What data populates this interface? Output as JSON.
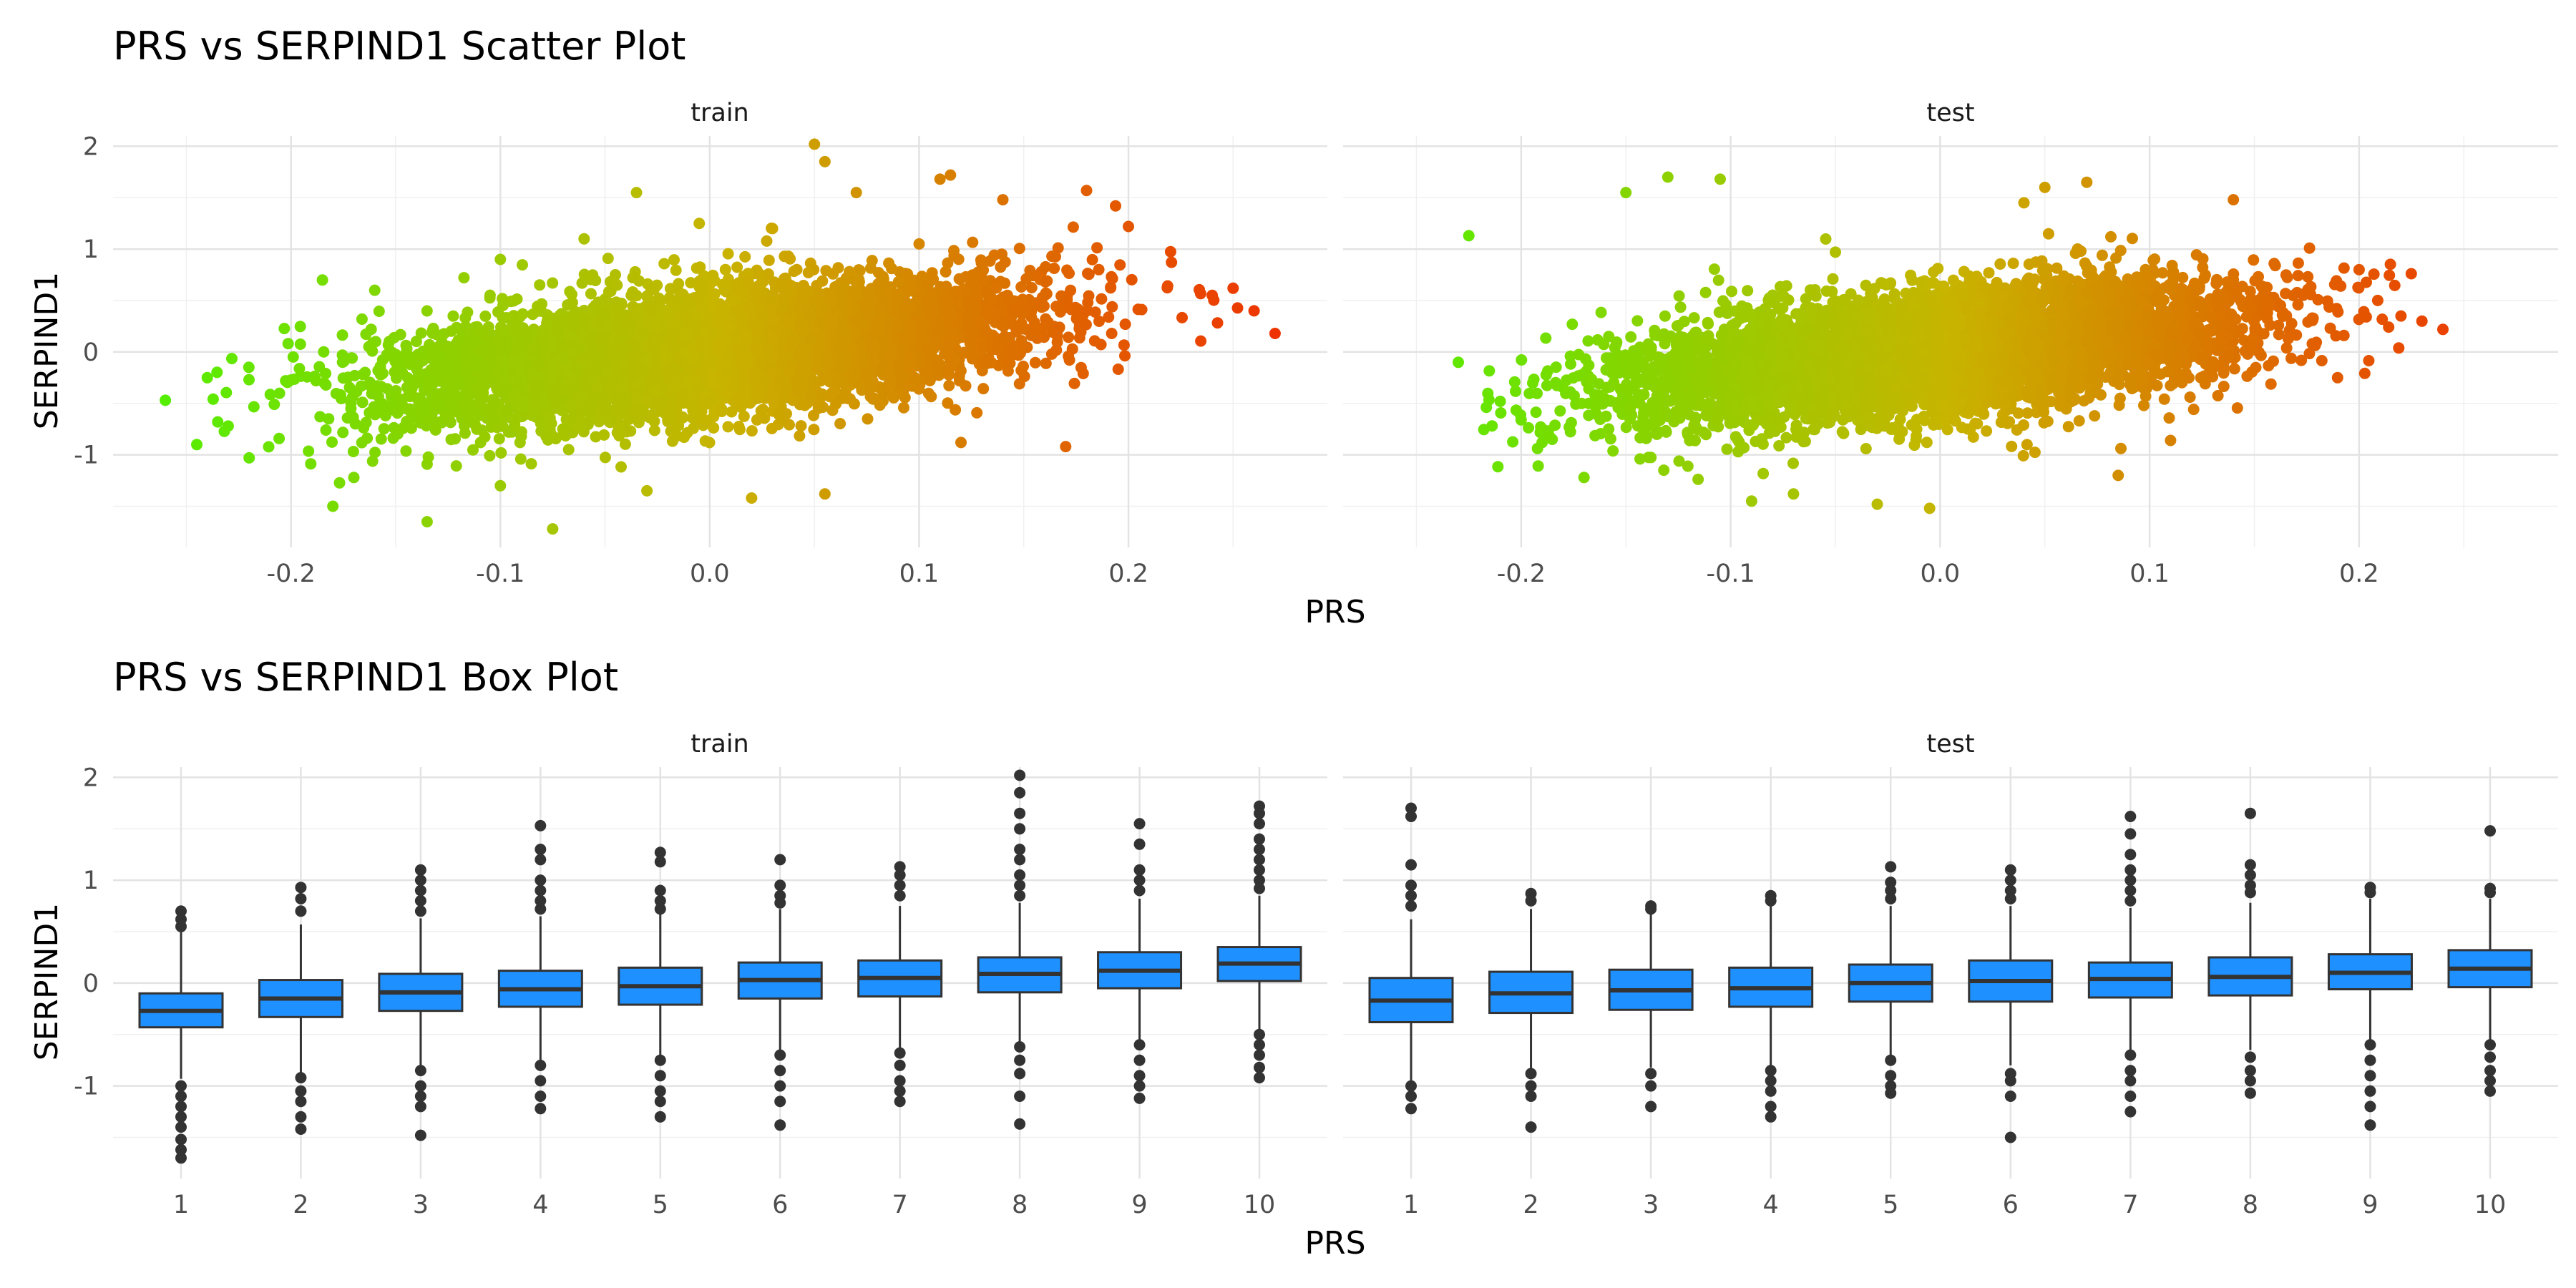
{
  "chart_data": [
    {
      "type": "scatter",
      "title": "PRS vs SERPIND1 Scatter Plot",
      "xlabel": "PRS",
      "ylabel": "SERPIND1",
      "facets": [
        "train",
        "test"
      ],
      "xlim": [
        -0.285,
        0.295
      ],
      "ylim": [
        -1.9,
        2.1
      ],
      "x_ticks": [
        -0.2,
        -0.1,
        0.0,
        0.1,
        0.2
      ],
      "x_tick_labels": [
        "-0.2",
        "-0.1",
        "0.0",
        "0.1",
        "0.2"
      ],
      "y_ticks": [
        -1,
        0,
        1,
        2
      ],
      "y_tick_labels": [
        "-1",
        "0",
        "1",
        "2"
      ],
      "color_by": "x",
      "color_gradient": [
        "#55ee00",
        "#c8b400",
        "#ee3300"
      ],
      "grid": true,
      "legend": "none",
      "approx_trend": {
        "slope": 2.2,
        "intercept": 0.0
      },
      "panels": [
        {
          "facet": "train",
          "x_range": [
            -0.26,
            0.27
          ],
          "points": [
            [
              -0.26,
              -0.47
            ],
            [
              -0.245,
              -0.9
            ],
            [
              -0.24,
              -0.25
            ],
            [
              -0.235,
              -0.68
            ],
            [
              -0.23,
              -0.72
            ],
            [
              -0.22,
              -1.03
            ],
            [
              -0.185,
              0.7
            ],
            [
              -0.18,
              -1.5
            ],
            [
              -0.17,
              -1.22
            ],
            [
              -0.16,
              0.6
            ],
            [
              -0.135,
              -1.65
            ],
            [
              -0.1,
              -1.3
            ],
            [
              -0.1,
              0.9
            ],
            [
              -0.075,
              -1.72
            ],
            [
              -0.06,
              1.1
            ],
            [
              -0.035,
              1.55
            ],
            [
              -0.03,
              -1.35
            ],
            [
              -0.005,
              1.25
            ],
            [
              0.02,
              -1.42
            ],
            [
              0.03,
              1.2
            ],
            [
              0.05,
              2.02
            ],
            [
              0.055,
              1.85
            ],
            [
              0.055,
              -1.38
            ],
            [
              0.07,
              1.55
            ],
            [
              0.1,
              1.05
            ],
            [
              0.11,
              1.68
            ],
            [
              0.115,
              1.72
            ],
            [
              0.12,
              -0.88
            ],
            [
              0.14,
              1.48
            ],
            [
              0.17,
              -0.92
            ],
            [
              0.18,
              1.57
            ],
            [
              0.2,
              1.22
            ],
            [
              0.24,
              0.55
            ],
            [
              0.25,
              0.62
            ],
            [
              0.26,
              0.4
            ],
            [
              0.27,
              0.18
            ]
          ]
        },
        {
          "facet": "test",
          "x_range": [
            -0.23,
            0.24
          ],
          "points": [
            [
              -0.23,
              -0.1
            ],
            [
              -0.225,
              1.13
            ],
            [
              -0.21,
              -0.48
            ],
            [
              -0.2,
              -0.66
            ],
            [
              -0.19,
              -0.88
            ],
            [
              -0.17,
              -1.22
            ],
            [
              -0.15,
              1.55
            ],
            [
              -0.13,
              1.7
            ],
            [
              -0.105,
              1.68
            ],
            [
              -0.09,
              -1.45
            ],
            [
              -0.07,
              -1.38
            ],
            [
              -0.05,
              0.97
            ],
            [
              -0.03,
              -1.48
            ],
            [
              -0.005,
              -1.52
            ],
            [
              0.04,
              1.45
            ],
            [
              0.05,
              1.6
            ],
            [
              0.07,
              1.65
            ],
            [
              0.085,
              -1.2
            ],
            [
              0.11,
              -0.86
            ],
            [
              0.14,
              1.48
            ],
            [
              0.2,
              0.8
            ],
            [
              0.22,
              0.35
            ],
            [
              0.23,
              0.3
            ],
            [
              0.24,
              0.22
            ]
          ]
        }
      ]
    },
    {
      "type": "box",
      "title": "PRS vs SERPIND1 Box Plot",
      "xlabel": "PRS",
      "ylabel": "SERPIND1",
      "facets": [
        "train",
        "test"
      ],
      "categories": [
        "1",
        "2",
        "3",
        "4",
        "5",
        "6",
        "7",
        "8",
        "9",
        "10"
      ],
      "ylim": [
        -1.9,
        2.1
      ],
      "y_ticks": [
        -1,
        0,
        1,
        2
      ],
      "y_tick_labels": [
        "-1",
        "0",
        "1",
        "2"
      ],
      "fill_color": "#1e90ff",
      "grid": true,
      "legend": "none",
      "panels": [
        {
          "facet": "train",
          "boxes": [
            {
              "category": "1",
              "q1": -0.43,
              "median": -0.27,
              "q3": -0.1,
              "lower": -0.93,
              "upper": 0.6,
              "outliers": [
                0.7,
                0.62,
                0.55,
                -1.0,
                -1.1,
                -1.2,
                -1.3,
                -1.4,
                -1.52,
                -1.62,
                -1.7
              ]
            },
            {
              "category": "2",
              "q1": -0.33,
              "median": -0.15,
              "q3": 0.03,
              "lower": -0.87,
              "upper": 0.57,
              "outliers": [
                0.93,
                0.82,
                0.7,
                -0.92,
                -1.05,
                -1.15,
                -1.3,
                -1.42
              ]
            },
            {
              "category": "3",
              "q1": -0.27,
              "median": -0.09,
              "q3": 0.09,
              "lower": -0.8,
              "upper": 0.63,
              "outliers": [
                1.1,
                1.0,
                0.9,
                0.8,
                0.7,
                -0.85,
                -1.0,
                -1.1,
                -1.2,
                -1.48
              ]
            },
            {
              "category": "4",
              "q1": -0.23,
              "median": -0.06,
              "q3": 0.12,
              "lower": -0.77,
              "upper": 0.65,
              "outliers": [
                1.53,
                1.3,
                1.2,
                1.0,
                0.9,
                0.8,
                0.72,
                -0.8,
                -0.95,
                -1.1,
                -1.22
              ]
            },
            {
              "category": "5",
              "q1": -0.21,
              "median": -0.03,
              "q3": 0.15,
              "lower": -0.72,
              "upper": 0.68,
              "outliers": [
                1.27,
                1.18,
                0.9,
                0.8,
                0.72,
                -0.75,
                -0.9,
                -1.05,
                -1.15,
                -1.3
              ]
            },
            {
              "category": "6",
              "q1": -0.15,
              "median": 0.03,
              "q3": 0.2,
              "lower": -0.66,
              "upper": 0.72,
              "outliers": [
                1.2,
                0.95,
                0.85,
                0.78,
                -0.7,
                -0.85,
                -1.0,
                -1.15,
                -1.38
              ]
            },
            {
              "category": "7",
              "q1": -0.13,
              "median": 0.05,
              "q3": 0.22,
              "lower": -0.63,
              "upper": 0.75,
              "outliers": [
                1.13,
                1.05,
                0.95,
                0.85,
                -0.68,
                -0.8,
                -0.95,
                -1.05,
                -1.15
              ]
            },
            {
              "category": "8",
              "q1": -0.09,
              "median": 0.09,
              "q3": 0.25,
              "lower": -0.57,
              "upper": 0.78,
              "outliers": [
                2.02,
                1.85,
                1.65,
                1.5,
                1.3,
                1.2,
                1.05,
                0.95,
                0.85,
                -0.62,
                -0.75,
                -0.88,
                -1.1,
                -1.37
              ]
            },
            {
              "category": "9",
              "q1": -0.05,
              "median": 0.12,
              "q3": 0.3,
              "lower": -0.55,
              "upper": 0.82,
              "outliers": [
                1.55,
                1.35,
                1.1,
                1.0,
                0.9,
                -0.6,
                -0.75,
                -0.9,
                -1.0,
                -1.12
              ]
            },
            {
              "category": "10",
              "q1": 0.02,
              "median": 0.19,
              "q3": 0.35,
              "lower": -0.45,
              "upper": 0.85,
              "outliers": [
                1.72,
                1.65,
                1.55,
                1.4,
                1.3,
                1.2,
                1.1,
                1.0,
                0.92,
                -0.5,
                -0.6,
                -0.7,
                -0.82,
                -0.92
              ]
            }
          ]
        },
        {
          "facet": "test",
          "boxes": [
            {
              "category": "1",
              "q1": -0.38,
              "median": -0.17,
              "q3": 0.05,
              "lower": -0.95,
              "upper": 0.62,
              "outliers": [
                1.7,
                1.62,
                1.15,
                0.95,
                0.85,
                0.75,
                -1.0,
                -1.1,
                -1.22
              ]
            },
            {
              "category": "2",
              "q1": -0.29,
              "median": -0.1,
              "q3": 0.11,
              "lower": -0.85,
              "upper": 0.72,
              "outliers": [
                0.87,
                0.8,
                -0.88,
                -1.0,
                -1.1,
                -1.4
              ]
            },
            {
              "category": "3",
              "q1": -0.26,
              "median": -0.07,
              "q3": 0.13,
              "lower": -0.82,
              "upper": 0.7,
              "outliers": [
                0.75,
                0.72,
                -0.88,
                -1.0,
                -1.2
              ]
            },
            {
              "category": "4",
              "q1": -0.23,
              "median": -0.05,
              "q3": 0.15,
              "lower": -0.8,
              "upper": 0.75,
              "outliers": [
                0.85,
                0.8,
                -0.85,
                -0.95,
                -1.05,
                -1.2,
                -1.3
              ]
            },
            {
              "category": "5",
              "q1": -0.18,
              "median": 0.0,
              "q3": 0.18,
              "lower": -0.72,
              "upper": 0.75,
              "outliers": [
                1.13,
                0.98,
                0.9,
                0.82,
                -0.75,
                -0.9,
                -1.0,
                -1.07
              ]
            },
            {
              "category": "6",
              "q1": -0.18,
              "median": 0.02,
              "q3": 0.22,
              "lower": -0.8,
              "upper": 0.75,
              "outliers": [
                1.1,
                1.0,
                0.9,
                0.82,
                -0.88,
                -0.95,
                -1.1,
                -1.5
              ]
            },
            {
              "category": "7",
              "q1": -0.14,
              "median": 0.04,
              "q3": 0.2,
              "lower": -0.65,
              "upper": 0.73,
              "outliers": [
                1.62,
                1.45,
                1.25,
                1.1,
                1.0,
                0.9,
                0.8,
                -0.7,
                -0.85,
                -0.95,
                -1.1,
                -1.25
              ]
            },
            {
              "category": "8",
              "q1": -0.12,
              "median": 0.06,
              "q3": 0.25,
              "lower": -0.65,
              "upper": 0.78,
              "outliers": [
                1.65,
                1.15,
                1.05,
                0.95,
                0.88,
                -0.72,
                -0.85,
                -0.95,
                -1.07
              ]
            },
            {
              "category": "9",
              "q1": -0.06,
              "median": 0.1,
              "q3": 0.28,
              "lower": -0.57,
              "upper": 0.82,
              "outliers": [
                0.93,
                0.88,
                -0.6,
                -0.75,
                -0.9,
                -1.05,
                -1.2,
                -1.38
              ]
            },
            {
              "category": "10",
              "q1": -0.04,
              "median": 0.14,
              "q3": 0.32,
              "lower": -0.55,
              "upper": 0.82,
              "outliers": [
                1.48,
                0.92,
                0.88,
                -0.6,
                -0.72,
                -0.85,
                -0.95,
                -1.05
              ]
            }
          ]
        }
      ]
    }
  ]
}
